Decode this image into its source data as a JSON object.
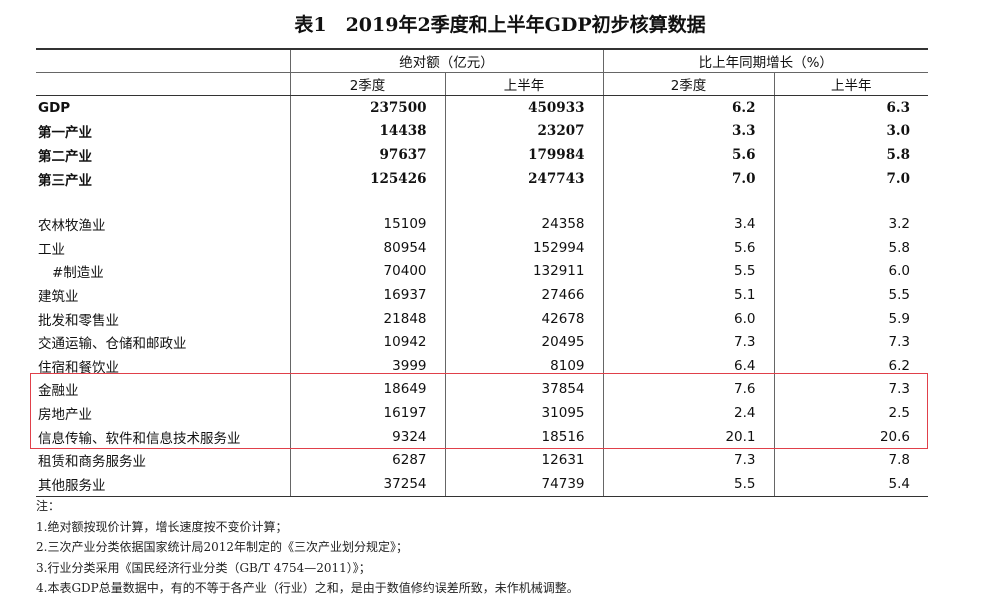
{
  "title": "表1　2019年2季度和上半年GDP初步核算数据",
  "header": {
    "group1": "绝对额（亿元）",
    "group2": "比上年同期增长（%）",
    "sub": [
      "2季度",
      "上半年",
      "2季度",
      "上半年"
    ]
  },
  "rows": [
    {
      "label": "GDP",
      "v": [
        "237500",
        "450933",
        "6.2",
        "6.3"
      ],
      "bold": true
    },
    {
      "label": "第一产业",
      "v": [
        "14438",
        "23207",
        "3.3",
        "3.0"
      ],
      "bold": true
    },
    {
      "label": "第二产业",
      "v": [
        "97637",
        "179984",
        "5.6",
        "5.8"
      ],
      "bold": true
    },
    {
      "label": "第三产业",
      "v": [
        "125426",
        "247743",
        "7.0",
        "7.0"
      ],
      "bold": true
    },
    {
      "spacer": true
    },
    {
      "label": "农林牧渔业",
      "v": [
        "15109",
        "24358",
        "3.4",
        "3.2"
      ]
    },
    {
      "label": "工业",
      "v": [
        "80954",
        "152994",
        "5.6",
        "5.8"
      ]
    },
    {
      "label": "#制造业",
      "v": [
        "70400",
        "132911",
        "5.5",
        "6.0"
      ],
      "indent": true
    },
    {
      "label": "建筑业",
      "v": [
        "16937",
        "27466",
        "5.1",
        "5.5"
      ]
    },
    {
      "label": "批发和零售业",
      "v": [
        "21848",
        "42678",
        "6.0",
        "5.9"
      ]
    },
    {
      "label": "交通运输、仓储和邮政业",
      "v": [
        "10942",
        "20495",
        "7.3",
        "7.3"
      ]
    },
    {
      "label": "住宿和餐饮业",
      "v": [
        "3999",
        "8109",
        "6.4",
        "6.2"
      ]
    },
    {
      "label": "金融业",
      "v": [
        "18649",
        "37854",
        "7.6",
        "7.3"
      ]
    },
    {
      "label": "房地产业",
      "v": [
        "16197",
        "31095",
        "2.4",
        "2.5"
      ]
    },
    {
      "label": "信息传输、软件和信息技术服务业",
      "v": [
        "9324",
        "18516",
        "20.1",
        "20.6"
      ]
    },
    {
      "label": "租赁和商务服务业",
      "v": [
        "6287",
        "12631",
        "7.3",
        "7.8"
      ]
    },
    {
      "label": "其他服务业",
      "v": [
        "37254",
        "74739",
        "5.5",
        "5.4"
      ]
    }
  ],
  "highlight_color": "#e0404a",
  "notes": [
    "注：",
    "1.绝对额按现价计算，增长速度按不变价计算；",
    "2.三次产业分类依据国家统计局2012年制定的《三次产业划分规定》；",
    "3.行业分类采用《国民经济行业分类（GB/T 4754—2011）》；",
    "4.本表GDP总量数据中，有的不等于各产业（行业）之和，是由于数值修约误差所致，未作机械调整。"
  ]
}
